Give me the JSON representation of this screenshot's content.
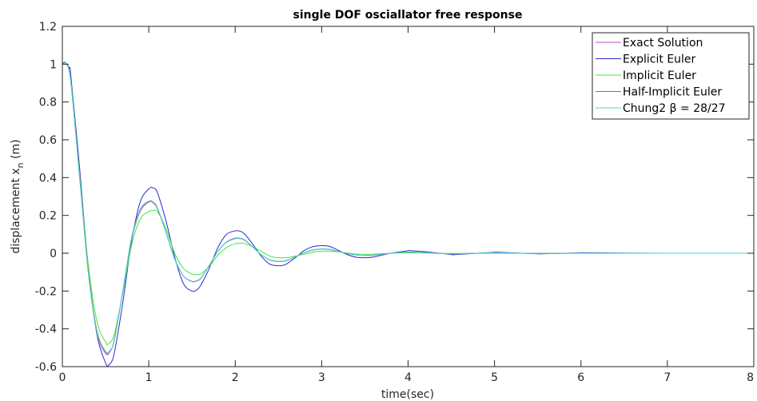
{
  "chart_data": {
    "type": "line",
    "title": "single DOF osciallator free response",
    "xlabel": "time(sec)",
    "ylabel": "displacement x",
    "ylabel_subscript": "n",
    "ylabel_unit": " (m)",
    "xlim": [
      0,
      8
    ],
    "ylim": [
      -0.6,
      1.2
    ],
    "xticks": [
      0,
      1,
      2,
      3,
      4,
      5,
      6,
      7,
      8
    ],
    "xtick_labels": [
      "0",
      "1",
      "2",
      "3",
      "4",
      "5",
      "6",
      "7",
      "8"
    ],
    "yticks": [
      -0.6,
      -0.4,
      -0.2,
      0,
      0.2,
      0.4,
      0.6,
      0.8,
      1,
      1.2
    ],
    "ytick_labels": [
      "-0.6",
      "-0.4",
      "-0.2",
      "0",
      "0.2",
      "0.4",
      "0.6",
      "0.8",
      "1",
      "1.2"
    ],
    "grid": false,
    "legend_position": "top-right",
    "series": [
      {
        "name": "Exact Solution",
        "color": "#c04bc0",
        "x": [
          0,
          0.05,
          0.1,
          0.2,
          0.3,
          0.4,
          0.5,
          0.55,
          0.6,
          0.7,
          0.8,
          0.9,
          1.0,
          1.05,
          1.1,
          1.2,
          1.3,
          1.4,
          1.5,
          1.55,
          1.6,
          1.7,
          1.8,
          1.9,
          2.0,
          2.05,
          2.1,
          2.2,
          2.3,
          2.4,
          2.5,
          2.55,
          2.6,
          2.7,
          2.8,
          2.9,
          3.0,
          3.05,
          3.1,
          3.2,
          3.3,
          3.4,
          3.5,
          3.55,
          3.6,
          3.8,
          4.0,
          4.05,
          4.2,
          4.5,
          4.55,
          4.8,
          5.0,
          5.05,
          5.5,
          6.0,
          7.0,
          8.0
        ],
        "y": [
          1.0,
          1.0,
          0.9,
          0.4,
          -0.1,
          -0.42,
          -0.53,
          -0.52,
          -0.46,
          -0.2,
          0.08,
          0.23,
          0.275,
          0.27,
          0.24,
          0.11,
          -0.03,
          -0.12,
          -0.15,
          -0.148,
          -0.135,
          -0.065,
          0.01,
          0.06,
          0.08,
          0.079,
          0.073,
          0.035,
          -0.008,
          -0.036,
          -0.044,
          -0.043,
          -0.039,
          -0.019,
          0.003,
          0.018,
          0.023,
          0.022,
          0.02,
          0.009,
          -0.002,
          -0.009,
          -0.012,
          -0.012,
          -0.011,
          0.0,
          0.006,
          0.006,
          0.003,
          -0.003,
          -0.003,
          0.0,
          0.002,
          0.002,
          -0.001,
          0.0,
          0.0,
          0.0
        ]
      },
      {
        "name": "Explicit Euler",
        "color": "#2b2bd6",
        "x": [
          0,
          0.03,
          0.08,
          0.1,
          0.2,
          0.3,
          0.4,
          0.5,
          0.54,
          0.6,
          0.7,
          0.8,
          0.9,
          1.0,
          1.05,
          1.1,
          1.2,
          1.3,
          1.4,
          1.5,
          1.55,
          1.6,
          1.7,
          1.8,
          1.9,
          2.0,
          2.05,
          2.1,
          2.2,
          2.3,
          2.4,
          2.5,
          2.55,
          2.6,
          2.7,
          2.8,
          2.9,
          3.0,
          3.05,
          3.1,
          3.2,
          3.3,
          3.4,
          3.5,
          3.55,
          3.6,
          3.8,
          4.0,
          4.05,
          4.2,
          4.5,
          4.55,
          4.8,
          5.0,
          5.05,
          5.5,
          5.55,
          6.0,
          6.05,
          7.0,
          8.0
        ],
        "y": [
          1.0,
          1.01,
          0.98,
          0.93,
          0.45,
          -0.08,
          -0.43,
          -0.58,
          -0.59,
          -0.53,
          -0.26,
          0.06,
          0.27,
          0.34,
          0.345,
          0.32,
          0.17,
          -0.02,
          -0.16,
          -0.2,
          -0.195,
          -0.17,
          -0.08,
          0.03,
          0.1,
          0.118,
          0.117,
          0.105,
          0.05,
          -0.015,
          -0.058,
          -0.066,
          -0.064,
          -0.055,
          -0.022,
          0.015,
          0.035,
          0.04,
          0.039,
          0.035,
          0.014,
          -0.008,
          -0.021,
          -0.024,
          -0.023,
          -0.02,
          0.0,
          0.013,
          0.013,
          0.008,
          -0.007,
          -0.007,
          0.0,
          0.005,
          0.005,
          -0.003,
          -0.003,
          0.002,
          0.002,
          0.0,
          0.0
        ]
      },
      {
        "name": "Implicit Euler",
        "color": "#3ee83e",
        "x": [
          0,
          0.05,
          0.1,
          0.2,
          0.3,
          0.4,
          0.5,
          0.53,
          0.6,
          0.7,
          0.8,
          0.9,
          1.0,
          1.05,
          1.1,
          1.2,
          1.3,
          1.4,
          1.5,
          1.57,
          1.6,
          1.7,
          1.8,
          1.9,
          2.0,
          2.08,
          2.1,
          2.2,
          2.3,
          2.4,
          2.5,
          2.6,
          2.7,
          2.8,
          2.9,
          3.0,
          3.1,
          3.2,
          3.4,
          3.6,
          3.8,
          4.0,
          4.5,
          5.0,
          6.0,
          7.0,
          8.0
        ],
        "y": [
          1.0,
          1.0,
          0.9,
          0.42,
          -0.06,
          -0.36,
          -0.47,
          -0.48,
          -0.43,
          -0.21,
          0.04,
          0.18,
          0.22,
          0.225,
          0.22,
          0.13,
          0.0,
          -0.08,
          -0.11,
          -0.113,
          -0.11,
          -0.07,
          -0.01,
          0.03,
          0.05,
          0.053,
          0.052,
          0.035,
          0.01,
          -0.015,
          -0.024,
          -0.023,
          -0.015,
          -0.005,
          0.006,
          0.011,
          0.011,
          0.007,
          -0.004,
          -0.005,
          0.0,
          0.002,
          -0.001,
          0.0,
          0.0,
          0.0,
          0.0
        ]
      },
      {
        "name": "Half-Implicit Euler",
        "color": "#d65050",
        "x": [
          0,
          0.05,
          0.1,
          0.2,
          0.3,
          0.4,
          0.5,
          0.55,
          0.6,
          0.7,
          0.8,
          0.9,
          1.0,
          1.05,
          1.1,
          1.2,
          1.3,
          1.4,
          1.5,
          1.55,
          1.6,
          1.7,
          1.8,
          1.9,
          2.0,
          2.05,
          2.1,
          2.2,
          2.3,
          2.4,
          2.5,
          2.55,
          2.6,
          2.7,
          2.8,
          2.9,
          3.0,
          3.05,
          3.1,
          3.2,
          3.3,
          3.4,
          3.5,
          3.55,
          3.6,
          3.8,
          4.0,
          4.2,
          4.5,
          4.8,
          5.0,
          5.5,
          6.0,
          7.0,
          8.0
        ],
        "y": [
          1.0,
          1.0,
          0.9,
          0.41,
          -0.09,
          -0.41,
          -0.52,
          -0.515,
          -0.46,
          -0.2,
          0.07,
          0.22,
          0.27,
          0.266,
          0.235,
          0.11,
          -0.03,
          -0.12,
          -0.148,
          -0.146,
          -0.133,
          -0.064,
          0.01,
          0.058,
          0.077,
          0.077,
          0.071,
          0.034,
          -0.008,
          -0.035,
          -0.043,
          -0.042,
          -0.038,
          -0.018,
          0.003,
          0.017,
          0.022,
          0.021,
          0.019,
          0.009,
          -0.002,
          -0.009,
          -0.011,
          -0.011,
          -0.01,
          0.0,
          0.006,
          0.003,
          -0.003,
          0.0,
          0.002,
          -0.001,
          0.0,
          0.0,
          0.0
        ]
      },
      {
        "name": "Chung2 β = 28/27",
        "color": "#3ed6d6",
        "x": [
          0,
          0.05,
          0.1,
          0.2,
          0.3,
          0.4,
          0.5,
          0.54,
          0.6,
          0.7,
          0.8,
          0.9,
          1.0,
          1.05,
          1.1,
          1.2,
          1.3,
          1.4,
          1.5,
          1.55,
          1.6,
          1.7,
          1.8,
          1.9,
          2.0,
          2.05,
          2.1,
          2.2,
          2.3,
          2.4,
          2.5,
          2.55,
          2.6,
          2.7,
          2.8,
          2.9,
          3.0,
          3.05,
          3.1,
          3.2,
          3.3,
          3.4,
          3.5,
          3.55,
          3.6,
          3.8,
          4.0,
          4.2,
          4.5,
          4.8,
          5.0,
          5.5,
          6.0,
          7.0,
          8.0
        ],
        "y": [
          1.0,
          1.0,
          0.9,
          0.4,
          -0.1,
          -0.42,
          -0.525,
          -0.52,
          -0.465,
          -0.2,
          0.075,
          0.225,
          0.272,
          0.268,
          0.238,
          0.108,
          -0.03,
          -0.12,
          -0.149,
          -0.147,
          -0.134,
          -0.065,
          0.01,
          0.059,
          0.078,
          0.078,
          0.072,
          0.034,
          -0.008,
          -0.035,
          -0.043,
          -0.042,
          -0.038,
          -0.018,
          0.003,
          0.017,
          0.022,
          0.021,
          0.019,
          0.009,
          -0.002,
          -0.009,
          -0.011,
          -0.011,
          -0.01,
          0.0,
          0.006,
          0.003,
          -0.003,
          0.0,
          0.002,
          -0.001,
          0.0,
          0.0,
          0.0
        ]
      }
    ]
  }
}
